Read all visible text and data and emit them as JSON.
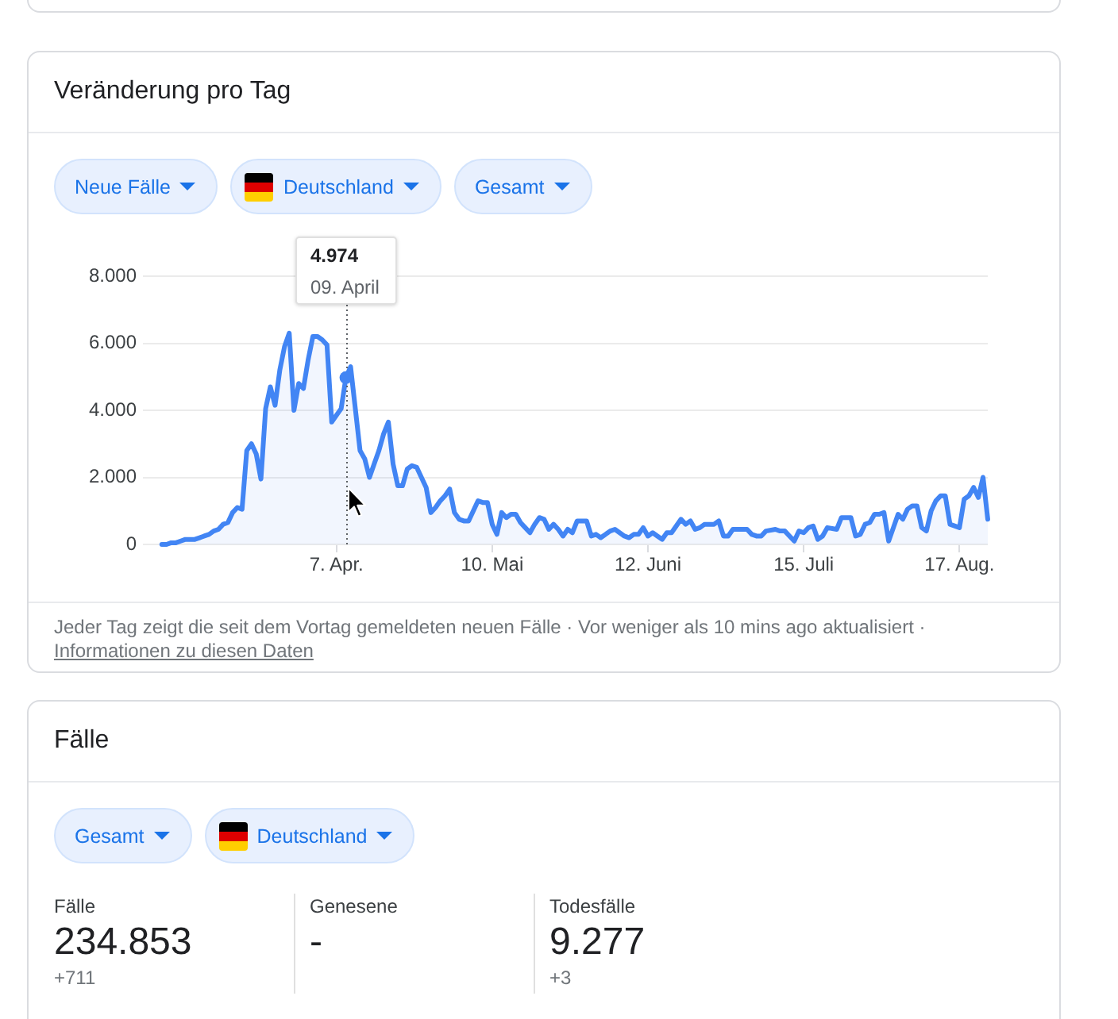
{
  "chart_data": [
    {
      "type": "area",
      "title": "Veränderung pro Tag",
      "color": "#4285f4",
      "x": [
        "--03-01",
        "--03-02",
        "--03-03",
        "--03-04",
        "--03-05",
        "--03-06",
        "--03-07",
        "--03-08",
        "--03-09",
        "--03-10",
        "--03-11",
        "--03-12",
        "--03-13",
        "--03-14",
        "--03-15",
        "--03-16",
        "--03-17",
        "--03-18",
        "--03-19",
        "--03-20",
        "--03-21",
        "--03-22",
        "--03-23",
        "--03-24",
        "--03-25",
        "--03-26",
        "--03-27",
        "--03-28",
        "--03-29",
        "--03-30",
        "--03-31",
        "--04-01",
        "--04-02",
        "--04-03",
        "--04-04",
        "--04-05",
        "--04-06",
        "--04-07",
        "--04-08",
        "--04-09",
        "--04-10",
        "--04-11",
        "--04-12",
        "--04-13",
        "--04-14",
        "--04-15",
        "--04-16",
        "--04-17",
        "--04-18",
        "--04-19",
        "--04-20",
        "--04-21",
        "--04-22",
        "--04-23",
        "--04-24",
        "--04-25",
        "--04-26",
        "--04-27",
        "--04-28",
        "--04-29",
        "--04-30",
        "--05-01",
        "--05-02",
        "--05-03",
        "--05-04",
        "--05-05",
        "--05-06",
        "--05-07",
        "--05-08",
        "--05-09",
        "--05-10",
        "--05-11",
        "--05-12",
        "--05-13",
        "--05-14",
        "--05-15",
        "--05-16",
        "--05-17",
        "--05-18",
        "--05-19",
        "--05-20",
        "--05-21",
        "--05-22",
        "--05-23",
        "--05-24",
        "--05-25",
        "--05-26",
        "--05-27",
        "--05-28",
        "--05-30",
        "--05-31",
        "--06-01",
        "--06-02",
        "--06-03",
        "--06-04",
        "--06-05",
        "--06-06",
        "--06-07",
        "--06-08",
        "--06-09",
        "--06-10",
        "--06-11",
        "--06-12",
        "--06-13",
        "--06-14",
        "--06-15",
        "--06-16",
        "--06-17",
        "--06-18",
        "--06-19",
        "--06-20",
        "--06-21",
        "--06-22",
        "--06-23",
        "--06-24",
        "--06-26",
        "--06-27",
        "--06-28",
        "--06-29",
        "--06-30",
        "--07-02",
        "--07-03",
        "--07-04",
        "--07-05",
        "--07-06",
        "--07-07",
        "--07-09",
        "--07-10",
        "--07-11",
        "--07-12",
        "--07-13",
        "--07-14",
        "--07-15",
        "--07-16",
        "--07-17",
        "--07-18",
        "--07-19",
        "--07-20",
        "--07-22",
        "--07-23",
        "--07-24",
        "--07-25",
        "--07-26",
        "--07-27",
        "--07-28",
        "--07-29",
        "--07-30",
        "--07-31",
        "--08-01",
        "--08-02",
        "--08-03",
        "--08-04",
        "--08-05",
        "--08-06",
        "--08-07",
        "--08-08",
        "--08-09",
        "--08-10",
        "--08-11",
        "--08-12",
        "--08-13",
        "--08-14",
        "--08-15",
        "--08-17",
        "--08-18",
        "--08-19",
        "--08-20",
        "--08-21",
        "--08-22",
        "--08-23"
      ],
      "values": [
        0,
        0,
        50,
        50,
        100,
        150,
        150,
        150,
        200,
        250,
        300,
        400,
        450,
        600,
        650,
        950,
        1100,
        1050,
        2800,
        3000,
        2700,
        1950,
        4050,
        4700,
        4150,
        5200,
        5900,
        6300,
        4000,
        4800,
        4650,
        5500,
        6200,
        6200,
        6100,
        5950,
        3650,
        3850,
        4050,
        4974,
        5300,
        4050,
        2800,
        2550,
        2000,
        2400,
        2800,
        3300,
        3650,
        2400,
        1750,
        1750,
        2250,
        2350,
        2300,
        2000,
        1700,
        950,
        1100,
        1300,
        1450,
        1650,
        950,
        750,
        700,
        700,
        1000,
        1300,
        1250,
        1250,
        600,
        300,
        950,
        800,
        900,
        900,
        650,
        500,
        350,
        600,
        800,
        750,
        450,
        600,
        450,
        250,
        450,
        350,
        700,
        700,
        250,
        300,
        200,
        300,
        400,
        450,
        350,
        250,
        200,
        300,
        300,
        500,
        250,
        350,
        250,
        150,
        350,
        350,
        550,
        750,
        600,
        700,
        450,
        500,
        600,
        600,
        700,
        250,
        250,
        450,
        450,
        450,
        300,
        250,
        250,
        400,
        450,
        400,
        400,
        250,
        100,
        400,
        350,
        500,
        550,
        150,
        250,
        500,
        450,
        800,
        800,
        800,
        250,
        300,
        600,
        650,
        900,
        900,
        950,
        100,
        500,
        900,
        750,
        1050,
        1150,
        1150,
        500,
        400,
        1000,
        1300,
        1450,
        1450,
        600,
        500,
        1350,
        1450,
        1700,
        1400,
        2000,
        750
      ],
      "xlim": [
        "--02-26",
        "--08-23"
      ],
      "xticks": [
        {
          "value": "--04-07",
          "label": "7. Apr."
        },
        {
          "value": "--05-10",
          "label": "10. Mai"
        },
        {
          "value": "--06-12",
          "label": "12. Juni"
        },
        {
          "value": "--07-15",
          "label": "15. Juli"
        },
        {
          "value": "--08-17",
          "label": "17. Aug."
        }
      ],
      "ylim": [
        0,
        8000
      ],
      "yticks": [
        0,
        {
          "value": 2000,
          "label": "2.000"
        },
        {
          "value": 4000,
          "label": "4.000"
        },
        {
          "value": 6000,
          "label": "6.000"
        },
        {
          "value": 8000,
          "label": "8.000"
        }
      ],
      "grid": "y",
      "ref_lines": [
        {
          "axis": "x",
          "value": "--04-09",
          "color": "#5f6368",
          "line_style": "dotted"
        }
      ],
      "annotations": [
        "Neue Fälle",
        "Deutschland",
        "Gesamt",
        "4.974",
        "09. April",
        "Jeder Tag zeigt die seit dem Vortag gemeldeten neuen Fälle · Vor weniger als 10 mins ago aktualisiert ·",
        "Informationen zu diesen Daten"
      ]
    },
    {
      "type": "other",
      "title": "Fälle",
      "annotations": [
        "Gesamt",
        "Deutschland",
        "Fälle",
        "234.853",
        "+711",
        "Genesene",
        "-",
        "Todesfälle",
        "9.277",
        "+3"
      ]
    }
  ]
}
